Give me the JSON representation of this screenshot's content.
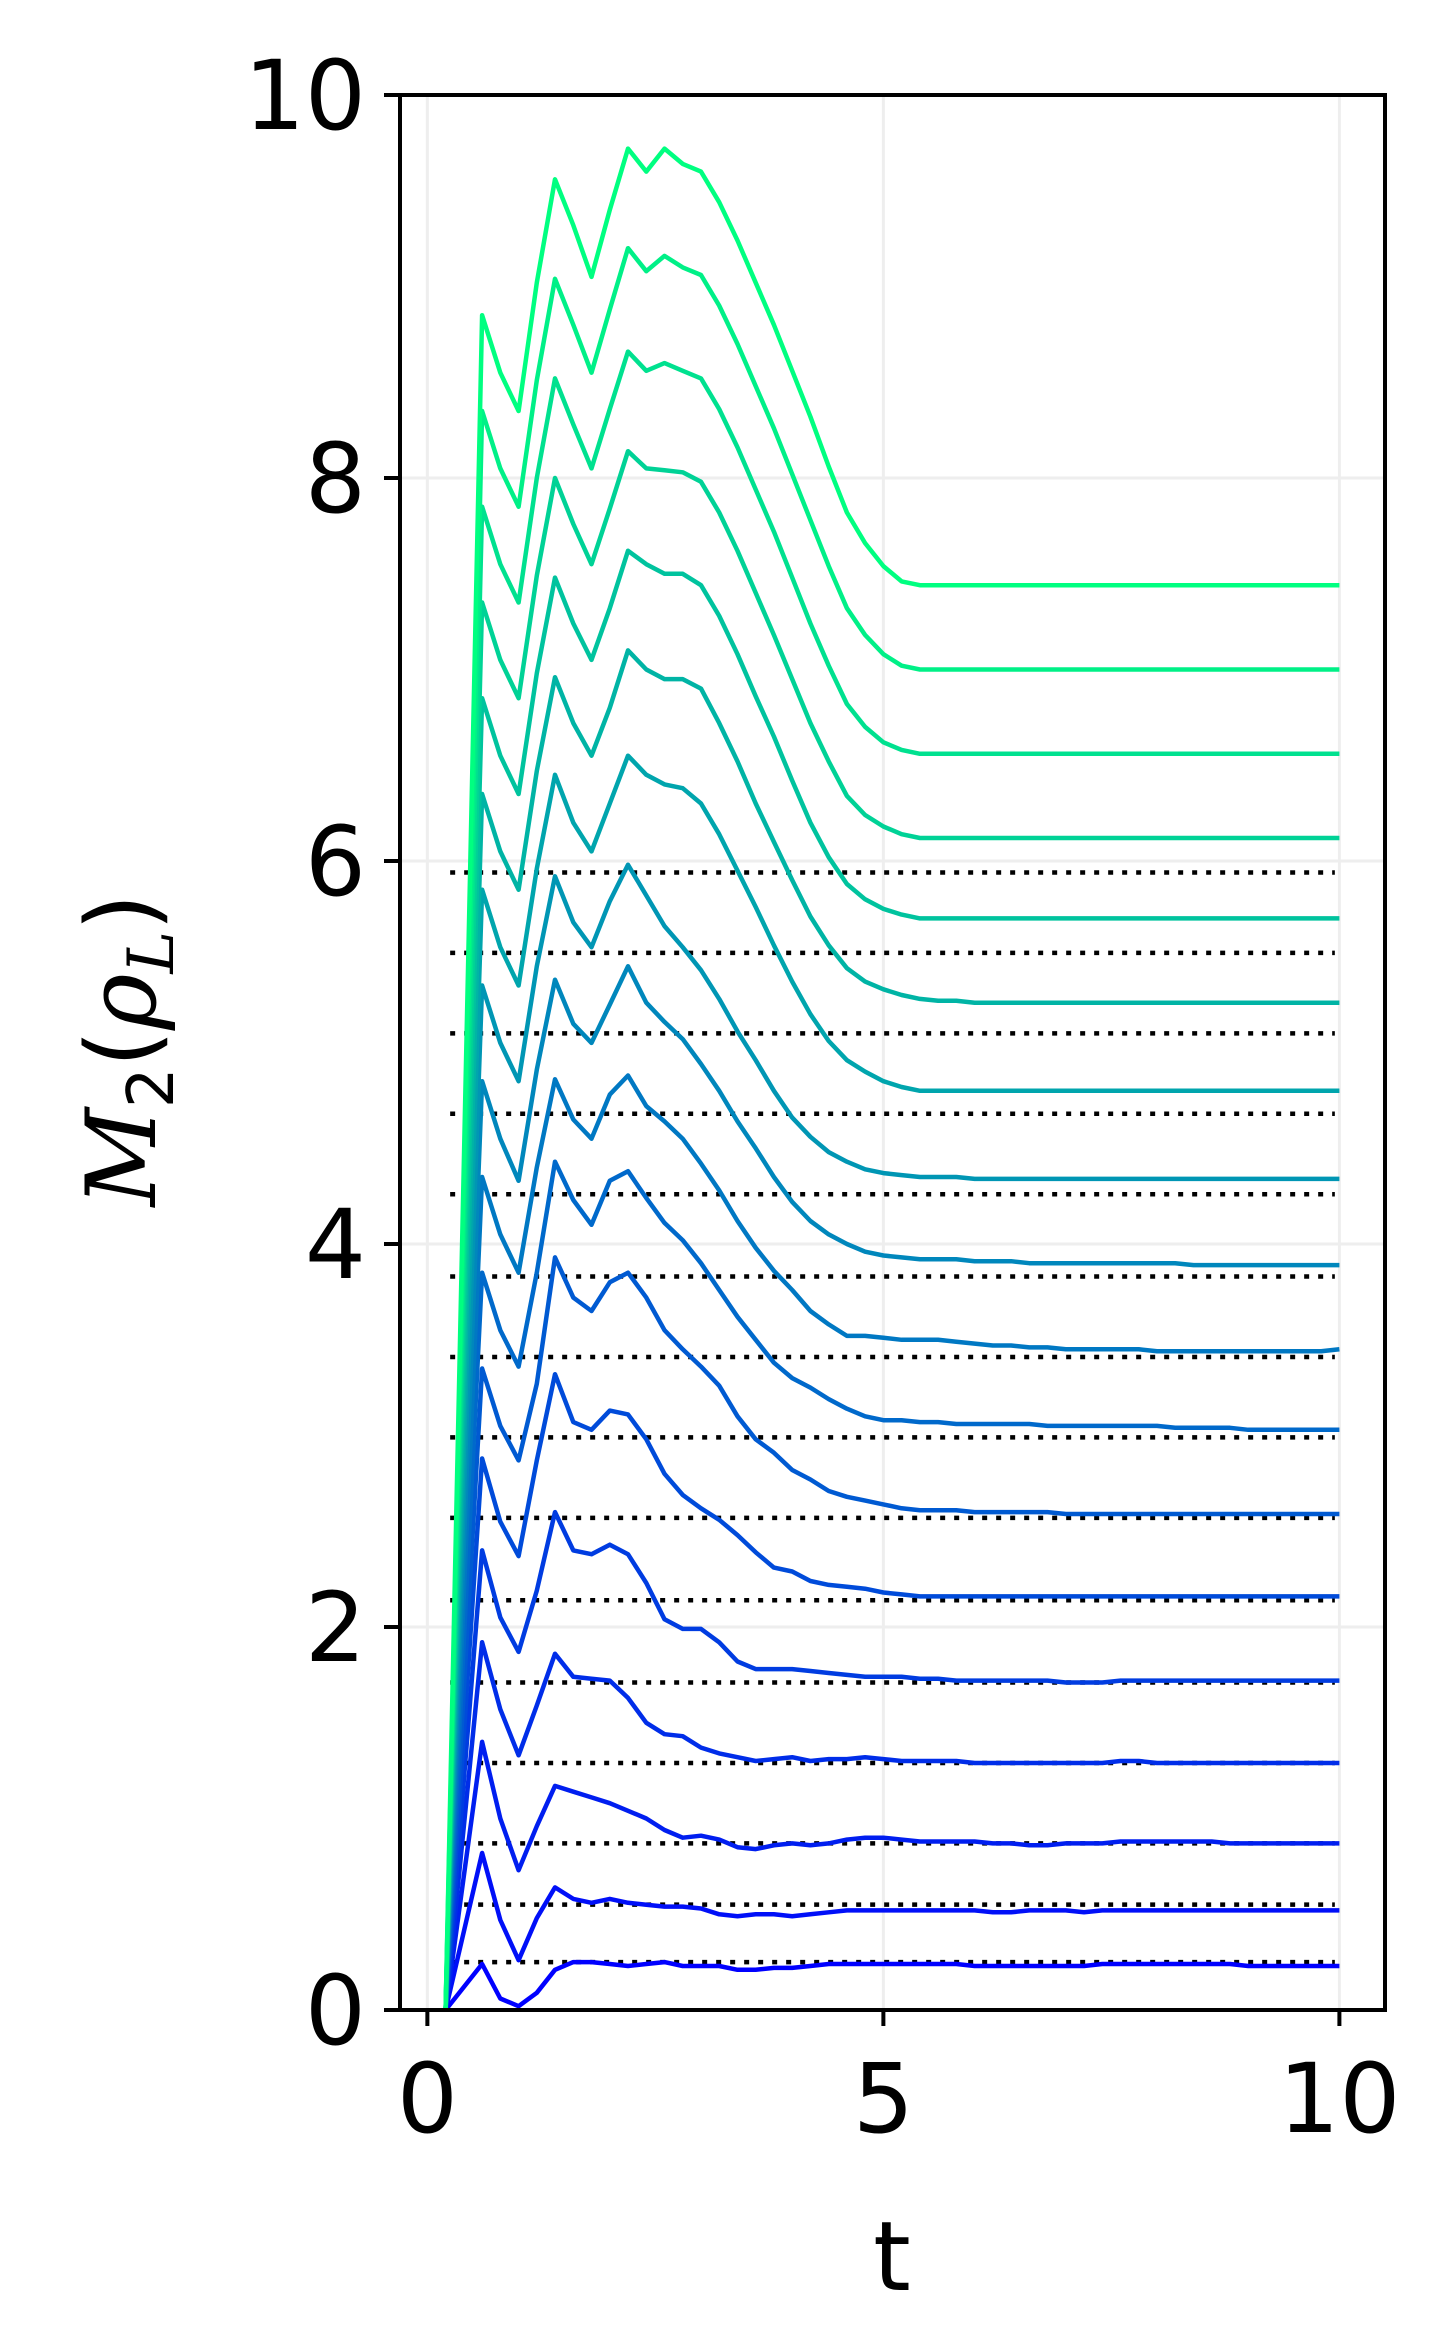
{
  "chart_data": {
    "type": "line",
    "title": "",
    "xlabel": "t",
    "ylabel": {
      "base": "M",
      "sub": "2",
      "arg": "ρ",
      "argsub": "L"
    },
    "xlim": [
      -0.3,
      10.5
    ],
    "ylim": [
      0,
      10
    ],
    "xticks": [
      0,
      5,
      10
    ],
    "yticks": [
      0,
      2,
      4,
      6,
      8,
      10
    ],
    "grid": true,
    "legend": "none",
    "colormap": {
      "start": "#0000ff",
      "end": "#00ff80"
    },
    "reference_color": "#000000",
    "x": [
      0.2,
      0.6,
      0.8,
      1.0,
      1.2,
      1.4,
      1.6,
      1.8,
      2.0,
      2.2,
      2.4,
      2.6,
      2.8,
      3.0,
      3.2,
      3.4,
      3.6,
      3.8,
      4.0,
      4.2,
      4.4,
      4.6,
      4.8,
      5.0,
      5.2,
      5.4,
      5.6,
      5.8,
      6.0,
      6.2,
      6.4,
      6.6,
      6.8,
      7.0,
      7.2,
      7.4,
      7.6,
      7.8,
      8.0,
      8.2,
      8.4,
      8.6,
      8.8,
      9.0,
      9.2,
      9.4,
      9.6,
      9.8,
      10.0
    ],
    "series": [
      {
        "values": [
          0,
          0.24,
          0.06,
          0.02,
          0.09,
          0.21,
          0.25,
          0.25,
          0.24,
          0.23,
          0.24,
          0.25,
          0.23,
          0.23,
          0.23,
          0.21,
          0.21,
          0.22,
          0.22,
          0.23,
          0.24,
          0.24,
          0.24,
          0.24,
          0.24,
          0.24,
          0.24,
          0.24,
          0.23,
          0.23,
          0.23,
          0.23,
          0.23,
          0.23,
          0.23,
          0.24,
          0.24,
          0.24,
          0.24,
          0.24,
          0.24,
          0.24,
          0.24,
          0.23,
          0.23,
          0.23,
          0.23,
          0.23,
          0.23
        ]
      },
      {
        "values": [
          0,
          0.82,
          0.47,
          0.26,
          0.48,
          0.64,
          0.58,
          0.56,
          0.58,
          0.56,
          0.55,
          0.54,
          0.54,
          0.53,
          0.5,
          0.49,
          0.5,
          0.5,
          0.49,
          0.5,
          0.51,
          0.52,
          0.52,
          0.52,
          0.52,
          0.52,
          0.52,
          0.52,
          0.52,
          0.51,
          0.51,
          0.52,
          0.52,
          0.52,
          0.51,
          0.52,
          0.52,
          0.52,
          0.52,
          0.52,
          0.52,
          0.52,
          0.52,
          0.52,
          0.52,
          0.52,
          0.52,
          0.52,
          0.52
        ]
      },
      {
        "values": [
          0,
          1.4,
          1.0,
          0.73,
          0.96,
          1.17,
          1.14,
          1.11,
          1.08,
          1.04,
          1.0,
          0.94,
          0.9,
          0.91,
          0.89,
          0.85,
          0.84,
          0.86,
          0.87,
          0.86,
          0.87,
          0.89,
          0.9,
          0.9,
          0.89,
          0.88,
          0.88,
          0.88,
          0.88,
          0.87,
          0.87,
          0.86,
          0.86,
          0.87,
          0.87,
          0.87,
          0.88,
          0.88,
          0.88,
          0.88,
          0.88,
          0.88,
          0.87,
          0.87,
          0.87,
          0.87,
          0.87,
          0.87,
          0.87
        ]
      },
      {
        "values": [
          0,
          1.92,
          1.57,
          1.33,
          1.59,
          1.86,
          1.74,
          1.73,
          1.72,
          1.63,
          1.5,
          1.44,
          1.43,
          1.37,
          1.34,
          1.32,
          1.3,
          1.31,
          1.32,
          1.3,
          1.31,
          1.31,
          1.32,
          1.31,
          1.3,
          1.3,
          1.3,
          1.3,
          1.29,
          1.29,
          1.29,
          1.29,
          1.29,
          1.29,
          1.29,
          1.29,
          1.3,
          1.3,
          1.29,
          1.29,
          1.29,
          1.29,
          1.29,
          1.29,
          1.29,
          1.29,
          1.29,
          1.29,
          1.29
        ]
      },
      {
        "values": [
          0,
          2.4,
          2.05,
          1.87,
          2.19,
          2.6,
          2.4,
          2.38,
          2.43,
          2.38,
          2.23,
          2.04,
          1.99,
          1.99,
          1.92,
          1.82,
          1.78,
          1.78,
          1.78,
          1.77,
          1.76,
          1.75,
          1.74,
          1.74,
          1.74,
          1.73,
          1.73,
          1.72,
          1.72,
          1.72,
          1.72,
          1.72,
          1.72,
          1.71,
          1.71,
          1.71,
          1.72,
          1.72,
          1.72,
          1.72,
          1.72,
          1.72,
          1.72,
          1.72,
          1.72,
          1.72,
          1.72,
          1.72,
          1.72
        ]
      },
      {
        "values": [
          0,
          2.88,
          2.55,
          2.37,
          2.87,
          3.32,
          3.07,
          3.03,
          3.13,
          3.11,
          2.98,
          2.8,
          2.69,
          2.62,
          2.56,
          2.48,
          2.39,
          2.31,
          2.29,
          2.24,
          2.22,
          2.21,
          2.2,
          2.18,
          2.17,
          2.16,
          2.16,
          2.16,
          2.16,
          2.16,
          2.16,
          2.16,
          2.16,
          2.16,
          2.16,
          2.16,
          2.16,
          2.16,
          2.16,
          2.16,
          2.16,
          2.16,
          2.16,
          2.16,
          2.16,
          2.16,
          2.16,
          2.16,
          2.16
        ]
      },
      {
        "values": [
          0,
          3.35,
          3.05,
          2.87,
          3.27,
          3.93,
          3.72,
          3.65,
          3.8,
          3.85,
          3.72,
          3.55,
          3.45,
          3.36,
          3.26,
          3.1,
          2.98,
          2.91,
          2.82,
          2.77,
          2.71,
          2.68,
          2.66,
          2.64,
          2.62,
          2.61,
          2.61,
          2.61,
          2.6,
          2.6,
          2.6,
          2.6,
          2.6,
          2.59,
          2.59,
          2.59,
          2.59,
          2.59,
          2.59,
          2.59,
          2.59,
          2.59,
          2.59,
          2.59,
          2.59,
          2.59,
          2.59,
          2.59,
          2.59
        ]
      },
      {
        "values": [
          0,
          3.85,
          3.55,
          3.36,
          3.85,
          4.43,
          4.23,
          4.1,
          4.33,
          4.38,
          4.24,
          4.11,
          4.02,
          3.9,
          3.76,
          3.62,
          3.5,
          3.38,
          3.3,
          3.25,
          3.19,
          3.14,
          3.1,
          3.08,
          3.08,
          3.07,
          3.07,
          3.06,
          3.06,
          3.06,
          3.06,
          3.06,
          3.05,
          3.05,
          3.05,
          3.05,
          3.05,
          3.05,
          3.05,
          3.04,
          3.04,
          3.04,
          3.04,
          3.03,
          3.03,
          3.03,
          3.03,
          3.03,
          3.03
        ]
      },
      {
        "values": [
          0,
          4.35,
          4.05,
          3.85,
          4.4,
          4.86,
          4.65,
          4.55,
          4.78,
          4.88,
          4.72,
          4.64,
          4.55,
          4.42,
          4.28,
          4.12,
          3.98,
          3.86,
          3.76,
          3.65,
          3.58,
          3.52,
          3.52,
          3.51,
          3.5,
          3.5,
          3.5,
          3.49,
          3.48,
          3.47,
          3.47,
          3.46,
          3.46,
          3.45,
          3.45,
          3.45,
          3.45,
          3.45,
          3.44,
          3.44,
          3.44,
          3.44,
          3.44,
          3.44,
          3.44,
          3.44,
          3.44,
          3.44,
          3.45
        ]
      },
      {
        "values": [
          0,
          4.85,
          4.55,
          4.33,
          4.91,
          5.38,
          5.15,
          5.05,
          5.25,
          5.45,
          5.26,
          5.16,
          5.07,
          4.94,
          4.8,
          4.64,
          4.5,
          4.35,
          4.22,
          4.12,
          4.05,
          4.0,
          3.96,
          3.94,
          3.93,
          3.92,
          3.92,
          3.92,
          3.91,
          3.91,
          3.91,
          3.9,
          3.9,
          3.9,
          3.9,
          3.9,
          3.9,
          3.9,
          3.9,
          3.9,
          3.89,
          3.89,
          3.89,
          3.89,
          3.89,
          3.89,
          3.89,
          3.89,
          3.89
        ]
      },
      {
        "values": [
          0,
          5.35,
          5.05,
          4.85,
          5.45,
          5.92,
          5.68,
          5.55,
          5.79,
          5.98,
          5.82,
          5.66,
          5.55,
          5.43,
          5.28,
          5.11,
          4.96,
          4.8,
          4.66,
          4.56,
          4.48,
          4.43,
          4.39,
          4.37,
          4.36,
          4.35,
          4.35,
          4.35,
          4.34,
          4.34,
          4.34,
          4.34,
          4.34,
          4.34,
          4.34,
          4.34,
          4.34,
          4.34,
          4.34,
          4.34,
          4.34,
          4.34,
          4.34,
          4.34,
          4.34,
          4.34,
          4.34,
          4.34,
          4.34
        ]
      },
      {
        "values": [
          0,
          5.85,
          5.55,
          5.35,
          5.96,
          6.45,
          6.2,
          6.05,
          6.3,
          6.55,
          6.45,
          6.4,
          6.38,
          6.3,
          6.14,
          5.95,
          5.76,
          5.56,
          5.37,
          5.2,
          5.06,
          4.96,
          4.9,
          4.85,
          4.82,
          4.8,
          4.8,
          4.8,
          4.8,
          4.8,
          4.8,
          4.8,
          4.8,
          4.8,
          4.8,
          4.8,
          4.8,
          4.8,
          4.8,
          4.8,
          4.8,
          4.8,
          4.8,
          4.8,
          4.8,
          4.8,
          4.8,
          4.8,
          4.8
        ]
      },
      {
        "values": [
          0,
          6.35,
          6.05,
          5.85,
          6.47,
          6.96,
          6.72,
          6.55,
          6.8,
          7.1,
          7.0,
          6.95,
          6.95,
          6.9,
          6.72,
          6.52,
          6.3,
          6.1,
          5.9,
          5.71,
          5.56,
          5.44,
          5.37,
          5.33,
          5.3,
          5.28,
          5.27,
          5.27,
          5.26,
          5.26,
          5.26,
          5.26,
          5.26,
          5.26,
          5.26,
          5.26,
          5.26,
          5.26,
          5.26,
          5.26,
          5.26,
          5.26,
          5.26,
          5.26,
          5.26,
          5.26,
          5.26,
          5.26,
          5.26
        ]
      },
      {
        "values": [
          0,
          6.85,
          6.55,
          6.35,
          6.98,
          7.48,
          7.24,
          7.05,
          7.32,
          7.62,
          7.55,
          7.5,
          7.5,
          7.44,
          7.28,
          7.08,
          6.86,
          6.65,
          6.42,
          6.2,
          6.02,
          5.88,
          5.8,
          5.75,
          5.72,
          5.7,
          5.7,
          5.7,
          5.7,
          5.7,
          5.7,
          5.7,
          5.7,
          5.7,
          5.7,
          5.7,
          5.7,
          5.7,
          5.7,
          5.7,
          5.7,
          5.7,
          5.7,
          5.7,
          5.7,
          5.7,
          5.7,
          5.7,
          5.7
        ]
      },
      {
        "values": [
          0,
          7.35,
          7.05,
          6.85,
          7.49,
          8.0,
          7.76,
          7.55,
          7.84,
          8.14,
          8.05,
          8.04,
          8.03,
          7.98,
          7.82,
          7.62,
          7.4,
          7.18,
          6.95,
          6.72,
          6.52,
          6.34,
          6.24,
          6.18,
          6.14,
          6.12,
          6.12,
          6.12,
          6.12,
          6.12,
          6.12,
          6.12,
          6.12,
          6.12,
          6.12,
          6.12,
          6.12,
          6.12,
          6.12,
          6.12,
          6.12,
          6.12,
          6.12,
          6.12,
          6.12,
          6.12,
          6.12,
          6.12,
          6.12
        ]
      },
      {
        "values": [
          0,
          7.85,
          7.55,
          7.35,
          8.0,
          8.52,
          8.28,
          8.05,
          8.36,
          8.66,
          8.56,
          8.6,
          8.56,
          8.52,
          8.36,
          8.16,
          7.94,
          7.72,
          7.48,
          7.24,
          7.02,
          6.82,
          6.7,
          6.62,
          6.58,
          6.56,
          6.56,
          6.56,
          6.56,
          6.56,
          6.56,
          6.56,
          6.56,
          6.56,
          6.56,
          6.56,
          6.56,
          6.56,
          6.56,
          6.56,
          6.56,
          6.56,
          6.56,
          6.56,
          6.56,
          6.56,
          6.56,
          6.56,
          6.56
        ]
      },
      {
        "values": [
          0,
          8.35,
          8.05,
          7.85,
          8.51,
          9.04,
          8.8,
          8.55,
          8.88,
          9.2,
          9.08,
          9.16,
          9.1,
          9.06,
          8.9,
          8.7,
          8.48,
          8.26,
          8.02,
          7.78,
          7.54,
          7.32,
          7.18,
          7.08,
          7.02,
          7.0,
          7.0,
          7.0,
          7.0,
          7.0,
          7.0,
          7.0,
          7.0,
          7.0,
          7.0,
          7.0,
          7.0,
          7.0,
          7.0,
          7.0,
          7.0,
          7.0,
          7.0,
          7.0,
          7.0,
          7.0,
          7.0,
          7.0,
          7.0
        ]
      },
      {
        "values": [
          0,
          8.85,
          8.55,
          8.35,
          9.02,
          9.56,
          9.32,
          9.05,
          9.4,
          9.72,
          9.6,
          9.72,
          9.64,
          9.6,
          9.44,
          9.24,
          9.02,
          8.8,
          8.56,
          8.32,
          8.06,
          7.82,
          7.66,
          7.54,
          7.46,
          7.44,
          7.44,
          7.44,
          7.44,
          7.44,
          7.44,
          7.44,
          7.44,
          7.44,
          7.44,
          7.44,
          7.44,
          7.44,
          7.44,
          7.44,
          7.44,
          7.44,
          7.44,
          7.44,
          7.44,
          7.44,
          7.44,
          7.44,
          7.44
        ]
      }
    ],
    "reference_levels": [
      0.25,
      0.55,
      0.87,
      1.29,
      1.71,
      2.14,
      2.57,
      2.99,
      3.41,
      3.83,
      4.26,
      4.68,
      5.1,
      5.52,
      5.94
    ]
  }
}
